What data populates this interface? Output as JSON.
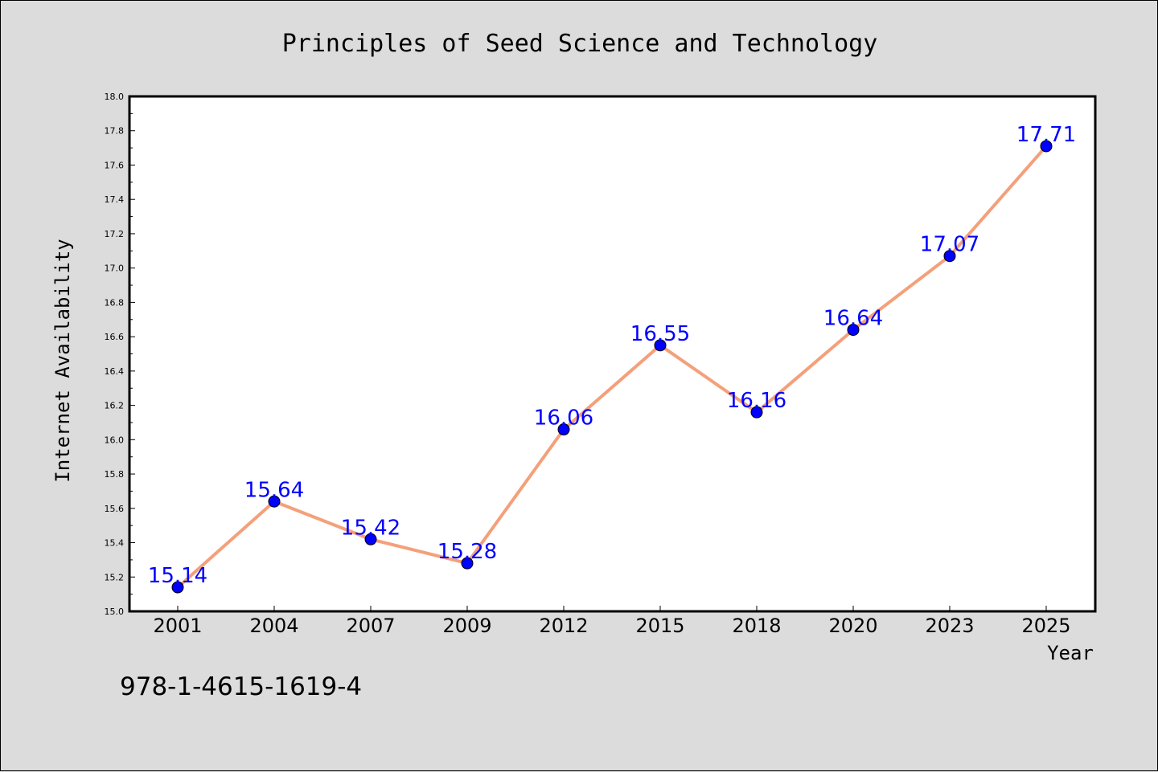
{
  "chart_data": {
    "type": "line",
    "title": "Principles of Seed Science and Technology",
    "xlabel": "Year",
    "ylabel": "Internet Availability",
    "categories": [
      "2001",
      "2004",
      "2007",
      "2009",
      "2012",
      "2015",
      "2018",
      "2020",
      "2023",
      "2025"
    ],
    "series": [
      {
        "values": [
          15.14,
          15.64,
          15.42,
          15.28,
          16.06,
          16.55,
          16.16,
          16.64,
          17.07,
          17.71
        ]
      }
    ],
    "data_labels": [
      "15.14",
      "15.64",
      "15.42",
      "15.28",
      "16.06",
      "16.55",
      "16.16",
      "16.64",
      "17.07",
      "17.71"
    ],
    "ylim": [
      15.0,
      18.0
    ],
    "yticks": [
      "15.0",
      "15.2",
      "15.4",
      "15.6",
      "15.8",
      "16.0",
      "16.2",
      "16.4",
      "16.6",
      "16.8",
      "17.0",
      "17.2",
      "17.4",
      "17.6",
      "17.8",
      "18.0"
    ],
    "grid": false,
    "legend": "none",
    "colors": {
      "line": "#f4a07a",
      "marker": "#0000ff",
      "label": "#0000ff",
      "background": "#dcdcdc",
      "plot_background": "#ffffff"
    }
  },
  "footer_text": "978-1-4615-1619-4"
}
